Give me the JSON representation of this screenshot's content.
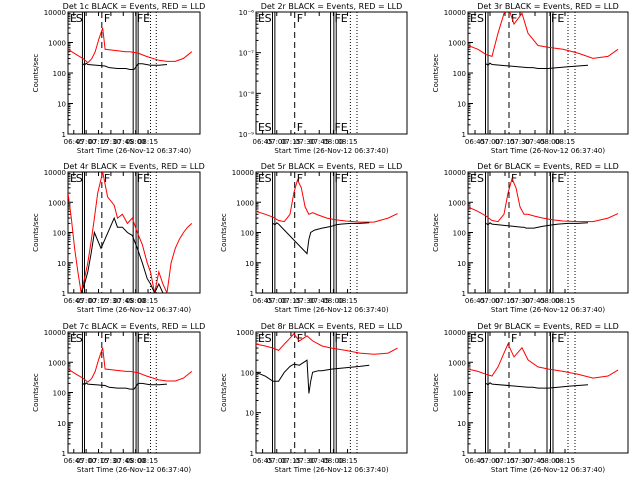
{
  "chart_data": [
    {
      "type": "line",
      "title": "Det 1c  BLACK = Events, RED = LLD",
      "xlabel": "Start Time (26-Nov-12 06:37:40)",
      "ylabel": "Counts/sec",
      "yscale": "log",
      "ylim": [
        1,
        10000
      ],
      "xticks": [
        "06:45",
        "07:00",
        "07:15",
        "07:30",
        "07:45",
        "08:00",
        "08:15"
      ],
      "yticks": [
        "1",
        "10",
        "100",
        "1000",
        "10000"
      ],
      "markers": [
        "E",
        "S",
        "F",
        "FE"
      ],
      "series": [
        {
          "name": "RED = LLD",
          "color": "#ff0000",
          "x": [
            0,
            10,
            18,
            24,
            27,
            29,
            33,
            37,
            42,
            45,
            70,
            75,
            85,
            95,
            110,
            120,
            130,
            140,
            150
          ],
          "y": [
            600,
            400,
            300,
            220,
            260,
            300,
            500,
            1200,
            3000,
            600,
            500,
            500,
            450,
            350,
            260,
            240,
            240,
            300,
            500
          ]
        },
        {
          "name": "BLACK = Events",
          "color": "#000000",
          "x": [
            18,
            20,
            22,
            24,
            45,
            47,
            50,
            60,
            70,
            75,
            80,
            85,
            90,
            95,
            100,
            110,
            120
          ],
          "y": [
            200,
            180,
            210,
            190,
            170,
            160,
            150,
            140,
            140,
            130,
            130,
            200,
            200,
            190,
            180,
            180,
            190
          ]
        }
      ]
    },
    {
      "type": "line",
      "title": "Det 2r  BLACK = Events, RED = LLD",
      "xlabel": "Start Time (26-Nov-12 06:37:40)",
      "ylabel": "",
      "yscale": "log",
      "ylim": [
        1e-09,
        1e-06
      ],
      "xticks": [
        "06:45",
        "07:00",
        "07:15",
        "07:30",
        "07:45",
        "08:00",
        "08:15"
      ],
      "yticks": [
        "10⁻⁹",
        "10⁻⁸",
        "10⁻⁷",
        "10⁻⁶"
      ],
      "markers": [
        "E",
        "S",
        "F",
        "FE"
      ],
      "series": []
    },
    {
      "type": "line",
      "title": "Det 3r  BLACK = Events, RED = LLD",
      "xlabel": "Start Time (26-Nov-12 06:37:40)",
      "ylabel": "Counts/sec",
      "yscale": "log",
      "ylim": [
        1,
        10000
      ],
      "xticks": [
        "06:45",
        "07:00",
        "07:15",
        "07:30",
        "07:45",
        "08:00",
        "08:15"
      ],
      "yticks": [
        "1",
        "10",
        "100",
        "1000",
        "10000"
      ],
      "markers": [
        "E",
        "S",
        "F",
        "FE"
      ],
      "series": [
        {
          "name": "RED = LLD",
          "color": "#ff0000",
          "x": [
            0,
            10,
            18,
            24,
            30,
            36,
            40,
            46,
            54,
            60,
            70,
            80,
            95,
            110,
            125,
            140,
            150
          ],
          "y": [
            800,
            600,
            400,
            350,
            2000,
            9000,
            15000,
            4000,
            9000,
            2000,
            800,
            700,
            600,
            450,
            300,
            350,
            600
          ]
        },
        {
          "name": "BLACK = Events",
          "color": "#000000",
          "x": [
            18,
            20,
            22,
            24,
            60,
            62,
            65,
            70,
            80,
            90,
            100,
            110,
            120
          ],
          "y": [
            200,
            180,
            210,
            190,
            150,
            150,
            150,
            140,
            140,
            150,
            160,
            170,
            180
          ]
        }
      ]
    },
    {
      "type": "line",
      "title": "Det 4r  BLACK = Events, RED = LLD",
      "xlabel": "Start Time (26-Nov-12 06:37:40)",
      "ylabel": "Counts/sec",
      "yscale": "log",
      "ylim": [
        1,
        10000
      ],
      "xticks": [
        "06:45",
        "07:00",
        "07:15",
        "07:30",
        "07:45",
        "08:00",
        "08:15"
      ],
      "yticks": [
        "1",
        "10",
        "100",
        "1000",
        "10000"
      ],
      "markers": [
        "E",
        "S",
        "F",
        "FE"
      ],
      "series": [
        {
          "name": "RED = LLD",
          "color": "#ff0000",
          "x": [
            0,
            4,
            8,
            12,
            16,
            20,
            24,
            28,
            32,
            36,
            42,
            48,
            56,
            60,
            66,
            72,
            78,
            84,
            90,
            96,
            100,
            105,
            110,
            115,
            120,
            125,
            130,
            135,
            140,
            145,
            150
          ],
          "y": [
            2000,
            300,
            30,
            5,
            1,
            3,
            10,
            50,
            300,
            2000,
            10000,
            1500,
            800,
            300,
            400,
            200,
            300,
            100,
            40,
            10,
            5,
            1,
            5,
            2,
            1,
            10,
            30,
            60,
            100,
            150,
            200
          ]
        },
        {
          "name": "BLACK = Events",
          "color": "#000000",
          "x": [
            16,
            20,
            24,
            28,
            32,
            40,
            56,
            60,
            66,
            72,
            78,
            84,
            90,
            96,
            100,
            105,
            110,
            115,
            120
          ],
          "y": [
            1,
            2,
            5,
            20,
            100,
            30,
            300,
            150,
            150,
            100,
            80,
            30,
            10,
            3,
            2,
            1,
            2,
            1,
            1
          ]
        }
      ]
    },
    {
      "type": "line",
      "title": "Det 5r  BLACK = Events, RED = LLD",
      "xlabel": "Start Time (26-Nov-12 06:37:40)",
      "ylabel": "Counts/sec",
      "yscale": "log",
      "ylim": [
        1,
        10000
      ],
      "xticks": [
        "06:45",
        "07:00",
        "07:15",
        "07:30",
        "07:45",
        "08:00",
        "08:15"
      ],
      "yticks": [
        "1",
        "10",
        "100",
        "1000",
        "10000"
      ],
      "markers": [
        "E",
        "S",
        "F",
        "FE"
      ],
      "series": [
        {
          "name": "RED = LLD",
          "color": "#ff0000",
          "x": [
            0,
            10,
            18,
            24,
            30,
            36,
            40,
            44,
            48,
            52,
            56,
            60,
            66,
            75,
            85,
            95,
            110,
            125,
            140,
            150
          ],
          "y": [
            500,
            400,
            320,
            250,
            230,
            400,
            2000,
            5500,
            3000,
            700,
            400,
            450,
            380,
            300,
            260,
            240,
            220,
            220,
            300,
            420
          ]
        },
        {
          "name": "BLACK = Events",
          "color": "#000000",
          "x": [
            18,
            20,
            22,
            24,
            54,
            56,
            58,
            62,
            66,
            70,
            75,
            80,
            85,
            90,
            100,
            110,
            120
          ],
          "y": [
            200,
            180,
            210,
            190,
            20,
            60,
            100,
            120,
            130,
            140,
            150,
            160,
            180,
            190,
            200,
            200,
            210
          ]
        }
      ]
    },
    {
      "type": "line",
      "title": "Det 6r  BLACK = Events, RED = LLD",
      "xlabel": "Start Time (26-Nov-12 06:37:40)",
      "ylabel": "Counts/sec",
      "yscale": "log",
      "ylim": [
        1,
        10000
      ],
      "xticks": [
        "06:45",
        "07:00",
        "07:15",
        "07:30",
        "07:45",
        "08:00",
        "08:15"
      ],
      "yticks": [
        "1",
        "10",
        "100",
        "1000",
        "10000"
      ],
      "markers": [
        "E",
        "S",
        "F",
        "FE"
      ],
      "series": [
        {
          "name": "RED = LLD",
          "color": "#ff0000",
          "x": [
            0,
            10,
            18,
            24,
            30,
            36,
            40,
            44,
            48,
            52,
            56,
            60,
            66,
            75,
            85,
            95,
            110,
            125,
            140,
            150
          ],
          "y": [
            700,
            500,
            350,
            250,
            230,
            400,
            2000,
            6000,
            3000,
            700,
            400,
            400,
            350,
            300,
            260,
            240,
            230,
            230,
            300,
            420
          ]
        },
        {
          "name": "BLACK = Events",
          "color": "#000000",
          "x": [
            18,
            20,
            22,
            24,
            54,
            56,
            58,
            62,
            66,
            70,
            75,
            80,
            85,
            90,
            100,
            110,
            120
          ],
          "y": [
            200,
            180,
            210,
            190,
            150,
            150,
            140,
            140,
            140,
            150,
            160,
            170,
            180,
            190,
            200,
            200,
            210
          ]
        }
      ]
    },
    {
      "type": "line",
      "title": "Det 7c  BLACK = Events, RED = LLD",
      "xlabel": "Start Time (26-Nov-12 06:37:40)",
      "ylabel": "Counts/sec",
      "yscale": "log",
      "ylim": [
        1,
        10000
      ],
      "xticks": [
        "06:45",
        "07:00",
        "07:15",
        "07:30",
        "07:45",
        "08:00",
        "08:15"
      ],
      "yticks": [
        "1",
        "10",
        "100",
        "1000",
        "10000"
      ],
      "markers": [
        "E",
        "S",
        "F",
        "FE"
      ],
      "series": [
        {
          "name": "RED = LLD",
          "color": "#ff0000",
          "x": [
            0,
            10,
            18,
            24,
            27,
            29,
            33,
            37,
            42,
            45,
            70,
            75,
            85,
            95,
            110,
            120,
            130,
            140,
            150
          ],
          "y": [
            600,
            400,
            300,
            220,
            260,
            300,
            500,
            1200,
            3000,
            600,
            500,
            500,
            450,
            350,
            260,
            240,
            240,
            300,
            500
          ]
        },
        {
          "name": "BLACK = Events",
          "color": "#000000",
          "x": [
            18,
            20,
            22,
            24,
            45,
            47,
            50,
            60,
            70,
            75,
            80,
            85,
            90,
            95,
            100,
            110,
            120
          ],
          "y": [
            200,
            180,
            210,
            190,
            170,
            160,
            150,
            140,
            140,
            130,
            130,
            200,
            200,
            190,
            180,
            180,
            190
          ]
        }
      ]
    },
    {
      "type": "line",
      "title": "Det 8r  BLACK = Events, RED = LLD",
      "xlabel": "Start Time (26-Nov-12 06:37:40)",
      "ylabel": "Counts/sec",
      "yscale": "log",
      "ylim": [
        1,
        1000
      ],
      "xticks": [
        "06:45",
        "07:00",
        "07:15",
        "07:30",
        "07:45",
        "08:00",
        "08:15"
      ],
      "yticks": [
        "1",
        "10",
        "100",
        "1000"
      ],
      "markers": [
        "E",
        "S",
        "F",
        "FE"
      ],
      "series": [
        {
          "name": "RED = LLD",
          "color": "#ff0000",
          "x": [
            0,
            10,
            18,
            24,
            30,
            36,
            40,
            46,
            54,
            60,
            70,
            80,
            95,
            110,
            125,
            140,
            150
          ],
          "y": [
            500,
            450,
            400,
            350,
            500,
            700,
            900,
            600,
            800,
            600,
            450,
            400,
            350,
            300,
            280,
            300,
            400
          ]
        },
        {
          "name": "BLACK = Events",
          "color": "#000000",
          "x": [
            0,
            10,
            18,
            24,
            30,
            36,
            40,
            46,
            54,
            56,
            58,
            60,
            66,
            70,
            80,
            95,
            110,
            120
          ],
          "y": [
            100,
            80,
            60,
            60,
            100,
            140,
            160,
            150,
            200,
            30,
            60,
            100,
            110,
            110,
            120,
            130,
            140,
            150
          ]
        }
      ]
    },
    {
      "type": "line",
      "title": "Det 9r  BLACK = Events, RED = LLD",
      "xlabel": "Start Time (26-Nov-12 06:37:40)",
      "ylabel": "Counts/sec",
      "yscale": "log",
      "ylim": [
        1,
        10000
      ],
      "xticks": [
        "06:45",
        "07:00",
        "07:15",
        "07:30",
        "07:45",
        "08:00",
        "08:15"
      ],
      "yticks": [
        "1",
        "10",
        "100",
        "1000",
        "10000"
      ],
      "markers": [
        "E",
        "S",
        "F",
        "FE"
      ],
      "series": [
        {
          "name": "RED = LLD",
          "color": "#ff0000",
          "x": [
            0,
            10,
            18,
            24,
            30,
            36,
            40,
            46,
            54,
            60,
            70,
            80,
            95,
            110,
            125,
            140,
            150
          ],
          "y": [
            600,
            500,
            400,
            350,
            700,
            2000,
            4000,
            1500,
            3000,
            1200,
            700,
            600,
            500,
            400,
            300,
            350,
            550
          ]
        },
        {
          "name": "BLACK = Events",
          "color": "#000000",
          "x": [
            18,
            20,
            22,
            24,
            60,
            62,
            65,
            70,
            80,
            90,
            100,
            110,
            120
          ],
          "y": [
            200,
            180,
            210,
            190,
            150,
            150,
            150,
            140,
            140,
            150,
            160,
            170,
            180
          ]
        }
      ]
    }
  ]
}
